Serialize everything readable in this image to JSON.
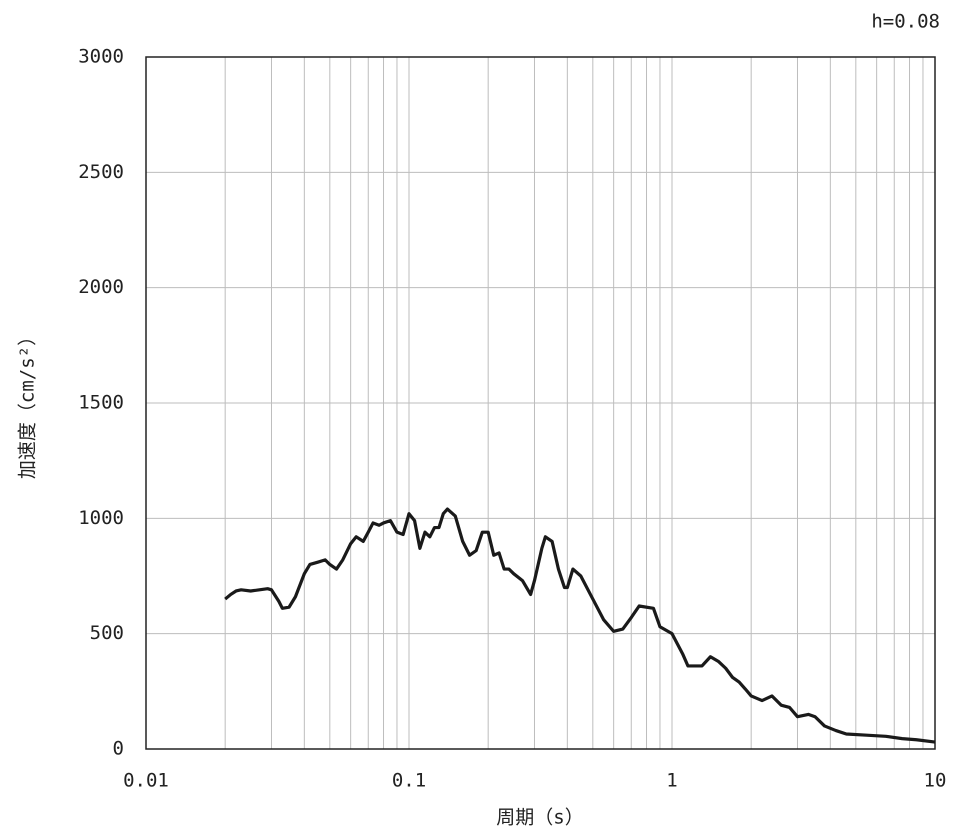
{
  "chart_data": {
    "type": "line",
    "annotation": "h=0.08",
    "x_label": "周期（s）",
    "y_label": "加速度（cm/s²）",
    "log_x": true,
    "grid": true,
    "xlim": [
      0.01,
      10
    ],
    "xticks": [
      0.01,
      0.1,
      1,
      10
    ],
    "xminorticks": [
      0.02,
      0.03,
      0.04,
      0.05,
      0.06,
      0.07,
      0.08,
      0.09,
      0.2,
      0.3,
      0.4,
      0.5,
      0.6,
      0.7,
      0.8,
      0.9,
      2,
      3,
      4,
      5,
      6,
      7,
      8,
      9
    ],
    "ylim": [
      0,
      3000
    ],
    "yticks": [
      0,
      500,
      1000,
      1500,
      2000,
      2500,
      3000
    ],
    "x": [
      0.02,
      0.021,
      0.022,
      0.023,
      0.025,
      0.027,
      0.029,
      0.03,
      0.032,
      0.033,
      0.035,
      0.037,
      0.04,
      0.042,
      0.045,
      0.048,
      0.05,
      0.053,
      0.056,
      0.06,
      0.063,
      0.067,
      0.07,
      0.073,
      0.077,
      0.08,
      0.085,
      0.09,
      0.095,
      0.1,
      0.105,
      0.11,
      0.115,
      0.12,
      0.125,
      0.13,
      0.135,
      0.14,
      0.15,
      0.16,
      0.17,
      0.18,
      0.19,
      0.2,
      0.21,
      0.22,
      0.23,
      0.24,
      0.25,
      0.27,
      0.29,
      0.3,
      0.32,
      0.33,
      0.35,
      0.37,
      0.39,
      0.4,
      0.42,
      0.45,
      0.5,
      0.55,
      0.6,
      0.65,
      0.7,
      0.75,
      0.85,
      0.9,
      1.0,
      1.1,
      1.15,
      1.3,
      1.4,
      1.5,
      1.6,
      1.7,
      1.8,
      1.9,
      2.0,
      2.2,
      2.4,
      2.6,
      2.8,
      3.0,
      3.3,
      3.5,
      3.8,
      4.2,
      4.6,
      5.5,
      6.5,
      7.5,
      8.5,
      10
    ],
    "series": [
      {
        "color": "#1a1a1a",
        "values": [
          650,
          670,
          685,
          690,
          685,
          690,
          695,
          690,
          640,
          610,
          615,
          660,
          760,
          800,
          810,
          820,
          800,
          780,
          820,
          890,
          920,
          900,
          940,
          980,
          970,
          980,
          990,
          940,
          930,
          1020,
          990,
          870,
          940,
          920,
          960,
          960,
          1020,
          1040,
          1010,
          900,
          840,
          860,
          940,
          940,
          840,
          850,
          780,
          780,
          760,
          730,
          670,
          730,
          870,
          920,
          900,
          780,
          700,
          700,
          780,
          750,
          650,
          560,
          510,
          520,
          570,
          620,
          610,
          530,
          500,
          410,
          360,
          360,
          400,
          380,
          350,
          310,
          290,
          260,
          230,
          210,
          230,
          190,
          180,
          140,
          150,
          140,
          100,
          80,
          65,
          60,
          55,
          45,
          40,
          30
        ]
      }
    ]
  }
}
